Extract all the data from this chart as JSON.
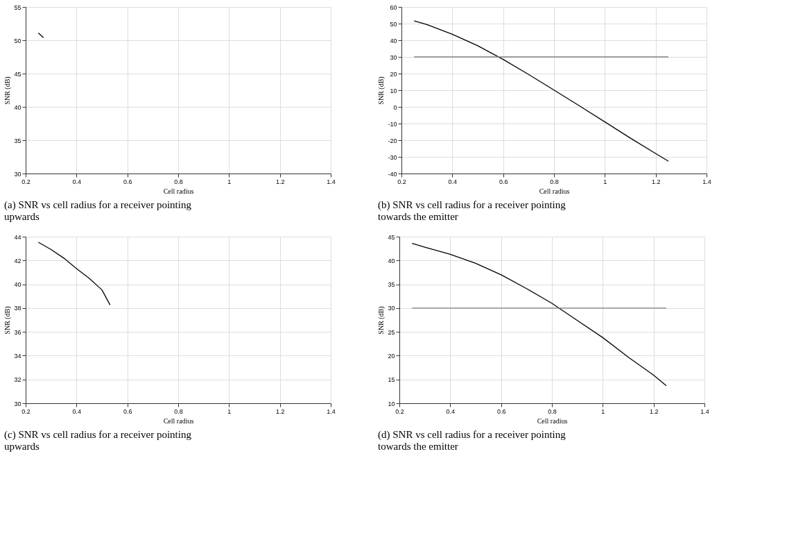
{
  "chart_data": [
    {
      "type": "line",
      "title": "(a)  SNR vs cell radius for a receiver pointing upwards",
      "xlabel": "Cell radius",
      "ylabel": "SNR (dB)",
      "xlim": [
        0.2,
        1.4
      ],
      "xticks": [
        0.2,
        0.4,
        0.6,
        0.8,
        1,
        1.2,
        1.4
      ],
      "ylim": [
        30,
        55
      ],
      "yticks": [
        30,
        35,
        40,
        45,
        50,
        55
      ],
      "grid": true,
      "series": [
        {
          "color": "#000000",
          "x": [
            0.25,
            0.27
          ],
          "values": [
            51.1,
            50.4
          ]
        }
      ]
    },
    {
      "type": "line",
      "title": "(b)  SNR vs cell radius for a receiver pointing towards the emitter",
      "xlabel": "Cell radius",
      "ylabel": "SNR (dB)",
      "xlim": [
        0.2,
        1.4
      ],
      "xticks": [
        0.2,
        0.4,
        0.6,
        0.8,
        1,
        1.2,
        1.4
      ],
      "ylim": [
        -40,
        60
      ],
      "yticks": [
        -40,
        -30,
        -20,
        -10,
        0,
        10,
        20,
        30,
        40,
        50,
        60
      ],
      "grid": true,
      "series": [
        {
          "color": "#000000",
          "x": [
            0.25,
            0.3,
            0.4,
            0.5,
            0.6,
            0.7,
            0.8,
            0.9,
            1.0,
            1.1,
            1.2,
            1.25
          ],
          "values": [
            51.6,
            49.4,
            43.6,
            36.7,
            28.5,
            19.5,
            10.1,
            0.6,
            -9.0,
            -18.7,
            -28.0,
            -32.6
          ]
        },
        {
          "color": "#808080",
          "x": [
            0.25,
            1.25
          ],
          "values": [
            30,
            30
          ]
        }
      ]
    },
    {
      "type": "line",
      "title": "(c)  SNR vs cell radius for a receiver pointing upwards",
      "xlabel": "Cell radius",
      "ylabel": "SNR (dB)",
      "xlim": [
        0.2,
        1.4
      ],
      "xticks": [
        0.2,
        0.4,
        0.6,
        0.8,
        1,
        1.2,
        1.4
      ],
      "ylim": [
        30,
        44
      ],
      "yticks": [
        30,
        32,
        34,
        36,
        38,
        40,
        42,
        44
      ],
      "grid": true,
      "series": [
        {
          "color": "#000000",
          "x": [
            0.25,
            0.3,
            0.35,
            0.4,
            0.45,
            0.5,
            0.532
          ],
          "values": [
            43.53,
            42.92,
            42.2,
            41.32,
            40.5,
            39.53,
            38.26
          ]
        }
      ]
    },
    {
      "type": "line",
      "title": "(d)  SNR vs cell radius for a receiver pointing towards the emitter",
      "xlabel": "Cell radius",
      "ylabel": "SNR (dB)",
      "xlim": [
        0.2,
        1.4
      ],
      "xticks": [
        0.2,
        0.4,
        0.6,
        0.8,
        1,
        1.2,
        1.4
      ],
      "ylim": [
        10,
        45
      ],
      "yticks": [
        10,
        15,
        20,
        25,
        30,
        35,
        40,
        45
      ],
      "grid": true,
      "series": [
        {
          "color": "#000000",
          "x": [
            0.25,
            0.3,
            0.4,
            0.5,
            0.6,
            0.7,
            0.8,
            0.9,
            1.0,
            1.1,
            1.2,
            1.25
          ],
          "values": [
            43.6,
            42.8,
            41.3,
            39.4,
            37.0,
            34.1,
            31.0,
            27.4,
            23.8,
            19.7,
            15.9,
            13.7
          ]
        },
        {
          "color": "#808080",
          "x": [
            0.25,
            1.25
          ],
          "values": [
            30,
            30
          ]
        }
      ]
    }
  ]
}
